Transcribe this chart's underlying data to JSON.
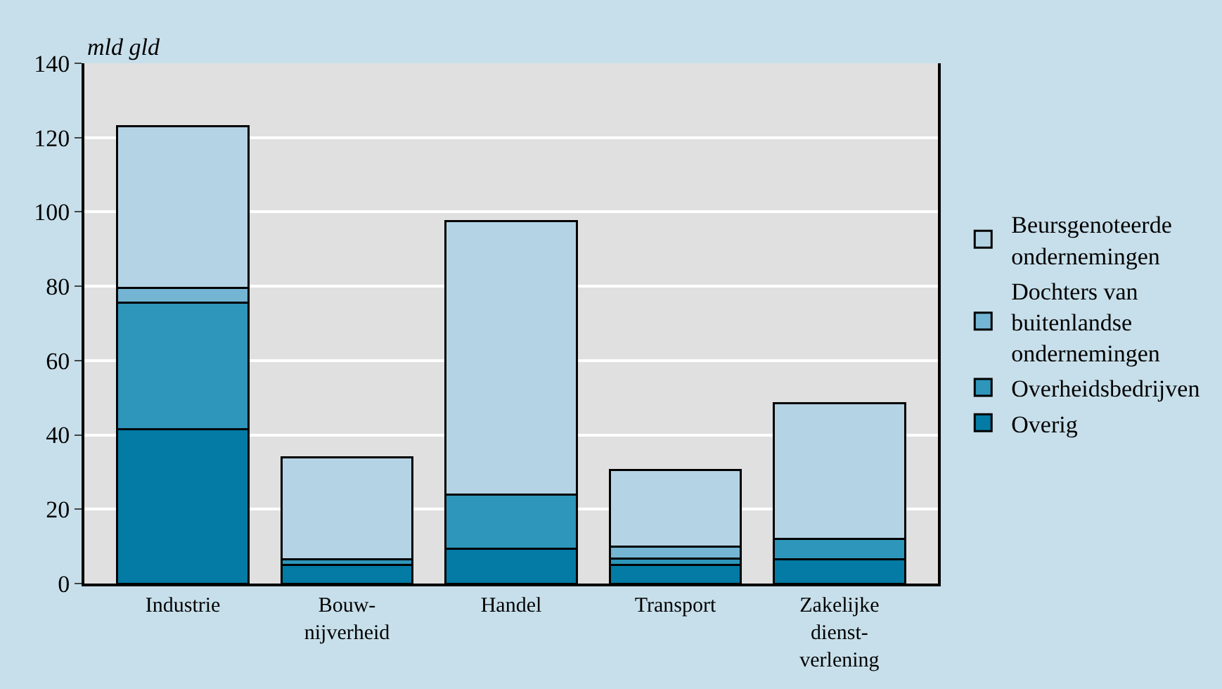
{
  "chart_data": {
    "type": "bar",
    "stacked": true,
    "ylabel": "mld gld",
    "categories": [
      "Industrie",
      "Bouw-\nnijverheid",
      "Handel",
      "Transport",
      "Zakelijke\ndienst-\nverlening"
    ],
    "series": [
      {
        "name": "Overig",
        "color": "#037ba5",
        "values": [
          41.5,
          5,
          9.3,
          5,
          6.5
        ]
      },
      {
        "name": "Overheidsbedrijven",
        "color": "#2e96ba",
        "values": [
          34,
          1.5,
          14.7,
          1.7,
          5.5
        ]
      },
      {
        "name": "Dochters van\nbuitenlandse\nondernemingen",
        "color": "#74b5d3",
        "values": [
          4,
          0,
          0,
          3.2,
          0
        ]
      },
      {
        "name": "Beursgenoteerde\nondernemingen",
        "color": "#b4d4e5",
        "values": [
          43.5,
          27.5,
          73.5,
          20.6,
          36.5
        ]
      }
    ],
    "ylim": [
      0,
      140
    ],
    "yticks": [
      0,
      20,
      40,
      60,
      80,
      100,
      120,
      140
    ],
    "grid": "y",
    "legend": "right"
  }
}
